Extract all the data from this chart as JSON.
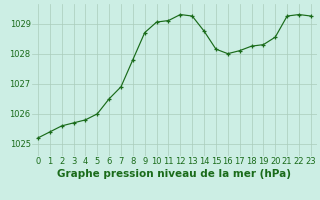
{
  "x": [
    0,
    1,
    2,
    3,
    4,
    5,
    6,
    7,
    8,
    9,
    10,
    11,
    12,
    13,
    14,
    15,
    16,
    17,
    18,
    19,
    20,
    21,
    22,
    23
  ],
  "y": [
    1025.2,
    1025.4,
    1025.6,
    1025.7,
    1025.8,
    1026.0,
    1026.5,
    1026.9,
    1027.8,
    1028.7,
    1029.05,
    1029.1,
    1029.3,
    1029.25,
    1028.75,
    1028.15,
    1028.0,
    1028.1,
    1028.25,
    1028.3,
    1028.55,
    1029.25,
    1029.3,
    1029.25
  ],
  "line_color": "#1a6b1a",
  "marker_color": "#1a6b1a",
  "bg_color": "#cceee4",
  "grid_color": "#aaccbb",
  "xlabel": "Graphe pression niveau de la mer (hPa)",
  "xlabel_color": "#1a6b1a",
  "yticks": [
    1025,
    1026,
    1027,
    1028,
    1029
  ],
  "xticks": [
    0,
    1,
    2,
    3,
    4,
    5,
    6,
    7,
    8,
    9,
    10,
    11,
    12,
    13,
    14,
    15,
    16,
    17,
    18,
    19,
    20,
    21,
    22,
    23
  ],
  "ylim": [
    1024.6,
    1029.65
  ],
  "xlim": [
    -0.5,
    23.5
  ],
  "tick_color": "#1a6b1a",
  "tick_fontsize": 6,
  "xlabel_fontsize": 7.5
}
